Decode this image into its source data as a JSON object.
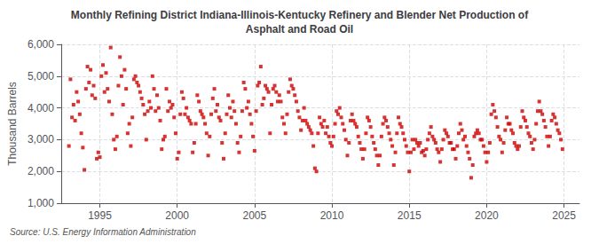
{
  "chart_data": {
    "type": "scatter",
    "title": "Monthly Refining District Indiana-Illinois-Kentucky Refinery and Blender Net Production of\nAsphalt and Road Oil",
    "ylabel": "Thousand Barrels",
    "source": "Source: U.S. Energy Information Administration",
    "color": "#cc0000",
    "marker": "square",
    "grid": true,
    "xlim": [
      1992.5,
      2026.0
    ],
    "xticks": [
      1995,
      2000,
      2005,
      2010,
      2015,
      2020,
      2025
    ],
    "ylim": [
      1000,
      6000
    ],
    "yticks": [
      {
        "value": 1000,
        "label": "1,000"
      },
      {
        "value": 2000,
        "label": "2,000"
      },
      {
        "value": 3000,
        "label": "3,000"
      },
      {
        "value": 4000,
        "label": "4,000"
      },
      {
        "value": 5000,
        "label": "5,000"
      },
      {
        "value": 6000,
        "label": "6,000"
      }
    ],
    "x": [
      1993.0,
      1993.1,
      1993.2,
      1993.3,
      1993.4,
      1993.5,
      1993.6,
      1993.7,
      1993.8,
      1993.9,
      1994.0,
      1994.1,
      1994.2,
      1994.3,
      1994.4,
      1994.5,
      1994.6,
      1994.7,
      1994.8,
      1994.9,
      1995.0,
      1995.1,
      1995.2,
      1995.3,
      1995.4,
      1995.5,
      1995.6,
      1995.7,
      1995.8,
      1995.9,
      1996.0,
      1996.1,
      1996.2,
      1996.3,
      1996.4,
      1996.5,
      1996.6,
      1996.7,
      1996.8,
      1996.9,
      1997.0,
      1997.1,
      1997.2,
      1997.3,
      1997.4,
      1997.5,
      1997.6,
      1997.7,
      1997.8,
      1997.9,
      1998.0,
      1998.1,
      1998.2,
      1998.3,
      1998.4,
      1998.5,
      1998.6,
      1998.7,
      1998.8,
      1998.9,
      1999.0,
      1999.1,
      1999.2,
      1999.3,
      1999.4,
      1999.5,
      1999.6,
      1999.7,
      1999.8,
      1999.9,
      2000.0,
      2000.1,
      2000.2,
      2000.3,
      2000.4,
      2000.5,
      2000.6,
      2000.7,
      2000.8,
      2000.9,
      2001.0,
      2001.1,
      2001.2,
      2001.3,
      2001.4,
      2001.5,
      2001.6,
      2001.7,
      2001.8,
      2001.9,
      2002.0,
      2002.1,
      2002.2,
      2002.3,
      2002.4,
      2002.5,
      2002.6,
      2002.7,
      2002.8,
      2002.9,
      2003.0,
      2003.1,
      2003.2,
      2003.3,
      2003.4,
      2003.5,
      2003.6,
      2003.7,
      2003.8,
      2003.9,
      2004.0,
      2004.1,
      2004.2,
      2004.3,
      2004.4,
      2004.5,
      2004.6,
      2004.7,
      2004.8,
      2004.9,
      2005.0,
      2005.1,
      2005.2,
      2005.3,
      2005.4,
      2005.5,
      2005.6,
      2005.7,
      2005.8,
      2005.9,
      2006.0,
      2006.1,
      2006.2,
      2006.3,
      2006.4,
      2006.5,
      2006.6,
      2006.7,
      2006.8,
      2006.9,
      2007.0,
      2007.1,
      2007.2,
      2007.3,
      2007.4,
      2007.5,
      2007.6,
      2007.7,
      2007.8,
      2007.9,
      2008.0,
      2008.1,
      2008.2,
      2008.3,
      2008.4,
      2008.5,
      2008.6,
      2008.7,
      2008.8,
      2008.9,
      2009.0,
      2009.1,
      2009.2,
      2009.3,
      2009.4,
      2009.5,
      2009.6,
      2009.7,
      2009.8,
      2009.9,
      2010.0,
      2010.1,
      2010.2,
      2010.3,
      2010.4,
      2010.5,
      2010.6,
      2010.7,
      2010.8,
      2010.9,
      2011.0,
      2011.1,
      2011.2,
      2011.3,
      2011.4,
      2011.5,
      2011.6,
      2011.7,
      2011.8,
      2011.9,
      2012.0,
      2012.1,
      2012.2,
      2012.3,
      2012.4,
      2012.5,
      2012.6,
      2012.7,
      2012.8,
      2012.9,
      2013.0,
      2013.1,
      2013.2,
      2013.3,
      2013.4,
      2013.5,
      2013.6,
      2013.7,
      2013.8,
      2013.9,
      2014.0,
      2014.1,
      2014.2,
      2014.3,
      2014.4,
      2014.5,
      2014.6,
      2014.7,
      2014.8,
      2014.9,
      2015.0,
      2015.1,
      2015.2,
      2015.3,
      2015.4,
      2015.5,
      2015.6,
      2015.7,
      2015.8,
      2015.9,
      2016.0,
      2016.1,
      2016.2,
      2016.3,
      2016.4,
      2016.5,
      2016.6,
      2016.7,
      2016.8,
      2016.9,
      2017.0,
      2017.1,
      2017.2,
      2017.3,
      2017.4,
      2017.5,
      2017.6,
      2017.7,
      2017.8,
      2017.9,
      2018.0,
      2018.1,
      2018.2,
      2018.3,
      2018.4,
      2018.5,
      2018.6,
      2018.7,
      2018.8,
      2018.9,
      2019.0,
      2019.1,
      2019.2,
      2019.3,
      2019.4,
      2019.5,
      2019.6,
      2019.7,
      2019.8,
      2019.9,
      2020.0,
      2020.1,
      2020.2,
      2020.3,
      2020.4,
      2020.5,
      2020.6,
      2020.7,
      2020.8,
      2020.9,
      2021.0,
      2021.1,
      2021.2,
      2021.3,
      2021.4,
      2021.5,
      2021.6,
      2021.7,
      2021.8,
      2021.9,
      2022.0,
      2022.1,
      2022.2,
      2022.3,
      2022.4,
      2022.5,
      2022.6,
      2022.7,
      2022.8,
      2022.9,
      2023.0,
      2023.1,
      2023.2,
      2023.3,
      2023.4,
      2023.5,
      2023.6,
      2023.7,
      2023.8,
      2023.9,
      2024.0,
      2024.1,
      2024.2,
      2024.3,
      2024.4,
      2024.5,
      2024.6,
      2024.7,
      2024.8,
      2024.9
    ],
    "values": [
      2800,
      4900,
      3700,
      4100,
      3600,
      4500,
      4200,
      3800,
      3200,
      2750,
      2050,
      4600,
      5300,
      4800,
      5200,
      4400,
      4700,
      4300,
      2400,
      2600,
      2450,
      5000,
      5350,
      4500,
      5100,
      4600,
      4200,
      5900,
      3800,
      3000,
      2700,
      3100,
      4700,
      5600,
      5000,
      4100,
      5200,
      4600,
      3200,
      3500,
      2800,
      3700,
      4900,
      5000,
      4800,
      4700,
      4500,
      4300,
      4100,
      3800,
      3000,
      3900,
      4200,
      4000,
      5000,
      4600,
      3900,
      4400,
      4000,
      3600,
      2700,
      3000,
      3100,
      4600,
      3900,
      4200,
      4000,
      4100,
      3700,
      3200,
      2400,
      2600,
      3800,
      4500,
      4300,
      3800,
      4000,
      3700,
      3600,
      3500,
      2600,
      2900,
      3500,
      4400,
      4200,
      3900,
      3800,
      3700,
      3500,
      3200,
      2500,
      3100,
      3800,
      4300,
      4600,
      3900,
      4100,
      3700,
      3600,
      2900,
      2400,
      3200,
      3800,
      4400,
      4000,
      3700,
      4200,
      3900,
      3500,
      2900,
      2600,
      3100,
      3900,
      4800,
      4600,
      4000,
      4200,
      3800,
      3500,
      3100,
      2650,
      3900,
      4700,
      4800,
      5300,
      4100,
      4300,
      4700,
      4600,
      4500,
      3200,
      4100,
      4600,
      4700,
      4500,
      4200,
      4400,
      4200,
      3700,
      3500,
      3200,
      3800,
      4500,
      4900,
      4700,
      4600,
      4400,
      4200,
      3900,
      3700,
      3300,
      3600,
      4000,
      3600,
      3500,
      3400,
      3300,
      3200,
      2800,
      2100,
      2000,
      3200,
      3700,
      3500,
      3400,
      3600,
      3200,
      3400,
      3100,
      2900,
      2800,
      3100,
      3500,
      3900,
      3800,
      4000,
      3700,
      3500,
      3300,
      3000,
      2500,
      2900,
      3600,
      3800,
      3600,
      3500,
      3400,
      3100,
      2900,
      2700,
      2400,
      2700,
      3200,
      3700,
      3600,
      3400,
      3100,
      2900,
      2700,
      2500,
      2200,
      2500,
      3100,
      3500,
      3700,
      3600,
      3400,
      3200,
      3000,
      2800,
      2200,
      2600,
      3200,
      3700,
      3500,
      3400,
      3200,
      3000,
      2800,
      2600,
      2000,
      2600,
      3000,
      2700,
      3000,
      2900,
      2800,
      2900,
      2600,
      2650,
      2500,
      2700,
      3000,
      3200,
      3400,
      3100,
      3000,
      2900,
      2700,
      2600,
      2300,
      2700,
      3000,
      3300,
      3200,
      3100,
      2900,
      2900,
      2700,
      2700,
      2400,
      2800,
      3200,
      3500,
      3300,
      3000,
      3100,
      2800,
      2600,
      2400,
      1800,
      2200,
      3100,
      3200,
      3300,
      3200,
      3000,
      3000,
      2800,
      2600,
      2300,
      2600,
      2900,
      3800,
      4100,
      3900,
      3700,
      3400,
      3100,
      3000,
      2600,
      2900,
      3300,
      3700,
      3500,
      3500,
      3300,
      3200,
      2900,
      2800,
      2700,
      2800,
      3400,
      3900,
      3700,
      3600,
      3400,
      3200,
      3100,
      2900,
      2700,
      3000,
      3500,
      3900,
      4200,
      3900,
      3800,
      3600,
      3400,
      3100,
      2800,
      3100,
      3600,
      3800,
      3700,
      3500,
      3300,
      3200,
      3000,
      2700
    ]
  }
}
